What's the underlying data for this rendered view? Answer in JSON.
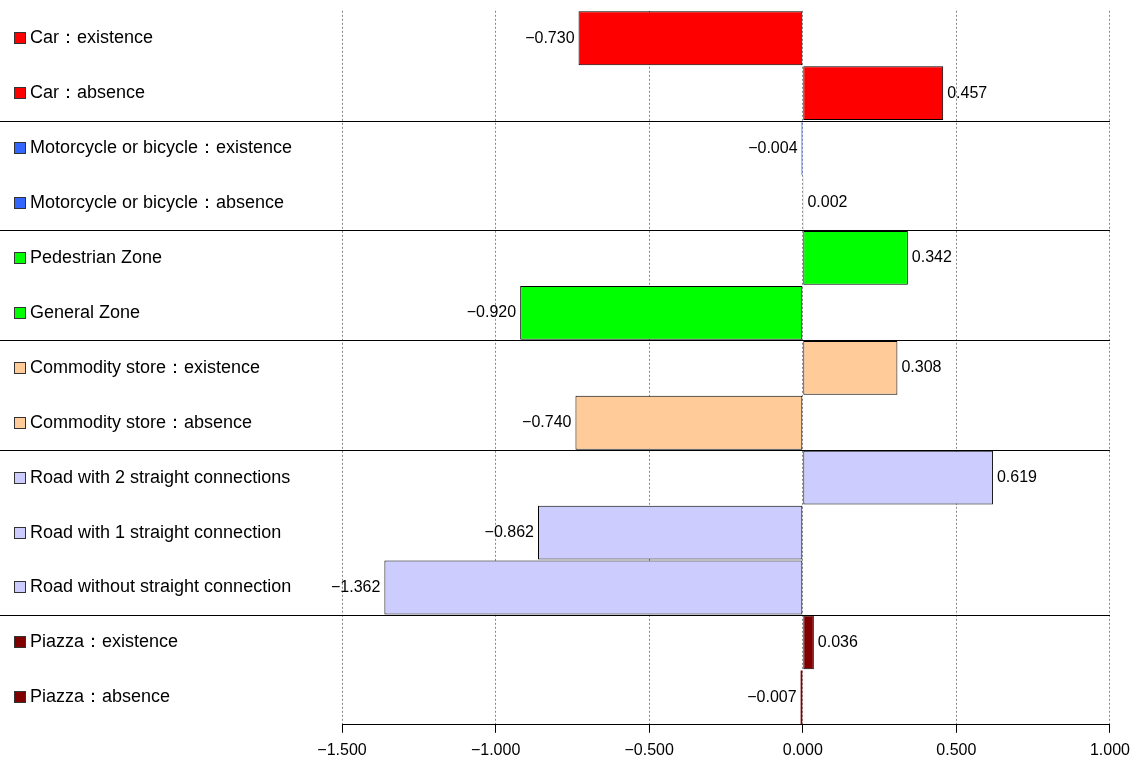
{
  "chart_data": {
    "type": "bar",
    "orientation": "horizontal",
    "categories": [
      "Car：existence",
      "Car：absence",
      "Motorcycle or bicycle：existence",
      "Motorcycle or bicycle：absence",
      "Pedestrian Zone",
      "General Zone",
      "Commodity store：existence",
      "Commodity store：absence",
      "Road with 2 straight connections",
      "Road with 1 straight connection",
      "Road without straight connection",
      "Piazza：existence",
      "Piazza：absence"
    ],
    "values": [
      -0.73,
      0.457,
      -0.004,
      0.002,
      0.342,
      -0.92,
      0.308,
      -0.74,
      0.619,
      -0.862,
      -1.362,
      0.036,
      -0.007
    ],
    "colors": [
      "#ff0000",
      "#ff0000",
      "#3366ff",
      "#3366ff",
      "#00ff00",
      "#00ff00",
      "#ffcc99",
      "#ffcc99",
      "#ccccff",
      "#ccccff",
      "#ccccff",
      "#800000",
      "#800000"
    ],
    "value_labels": [
      "−0.730",
      "0.457",
      "−0.004",
      "0.002",
      "0.342",
      "−0.920",
      "0.308",
      "−0.740",
      "0.619",
      "−0.862",
      "−1.362",
      "0.036",
      "−0.007"
    ],
    "xlim": [
      -1.5,
      1.0
    ],
    "xticks": [
      {
        "value": -1.5,
        "label": "−1.500"
      },
      {
        "value": -1.0,
        "label": "−1.000"
      },
      {
        "value": -0.5,
        "label": "−0.500"
      },
      {
        "value": 0,
        "label": "0.000"
      },
      {
        "value": 0.5,
        "label": "0.500"
      },
      {
        "value": 1.0,
        "label": "1.000"
      }
    ],
    "grid": "x",
    "legend": false
  }
}
